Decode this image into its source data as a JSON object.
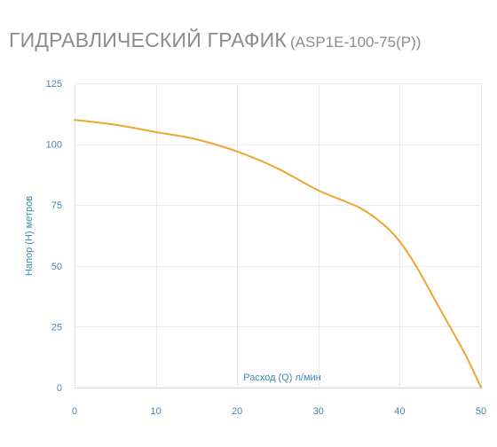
{
  "header": {
    "title": "ГИДРАВЛИЧЕСКИЙ ГРАФИК",
    "model": "(ASP1E-100-75(P))"
  },
  "chart_data": {
    "type": "line",
    "title": "ГИДРАВЛИЧЕСКИЙ ГРАФИК (ASP1E-100-75(P))",
    "xlabel": "Расход (Q) л/мин",
    "ylabel": "Напор (H) метров",
    "xlim": [
      0,
      50
    ],
    "ylim": [
      0,
      125
    ],
    "xticks": [
      0,
      10,
      20,
      30,
      40,
      50
    ],
    "yticks": [
      0,
      25,
      50,
      75,
      100,
      125
    ],
    "xtick_labels": [
      "0",
      "10",
      "20",
      "30",
      "40",
      "50"
    ],
    "ytick_labels": [
      "0",
      "25",
      "50",
      "75",
      "100",
      "125"
    ],
    "grid": true,
    "series": [
      {
        "x": [
          0,
          5,
          10,
          15,
          20,
          25,
          30,
          35,
          38,
          40,
          42,
          45,
          48,
          50
        ],
        "y": [
          110,
          108,
          105,
          102,
          97,
          90,
          81,
          74,
          67,
          60,
          50,
          32,
          14,
          0
        ]
      }
    ],
    "colors": {
      "line": "#f0a432",
      "tick_text": "#3f88b5",
      "grid": "#e9e9e9"
    }
  }
}
